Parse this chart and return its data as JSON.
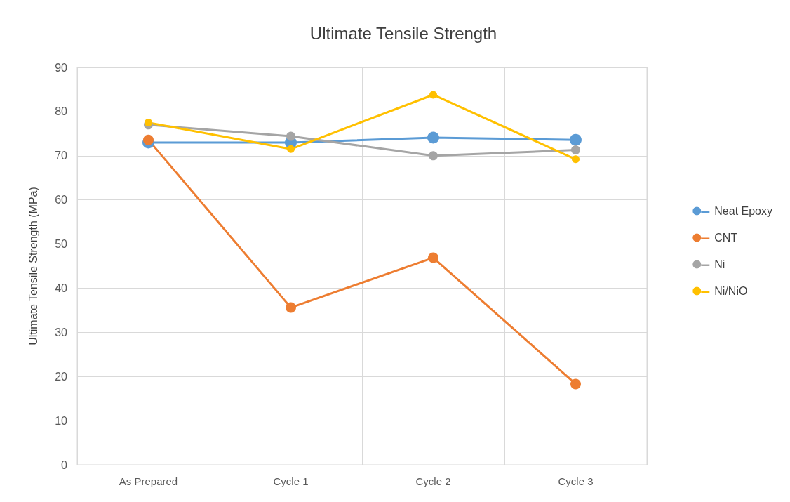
{
  "chart_data": {
    "type": "line",
    "title": "Ultimate Tensile Strength",
    "ylabel": "Ultimate Tensile Strength (MPa)",
    "categories": [
      "As Prepared",
      "Cycle 1",
      "Cycle 2",
      "Cycle 3"
    ],
    "series": [
      {
        "name": "Neat Epoxy",
        "color": "#5b9bd5",
        "values": [
          73.0,
          73.0,
          74.1,
          73.6
        ]
      },
      {
        "name": "CNT",
        "color": "#ed7d31",
        "values": [
          73.6,
          35.6,
          46.9,
          18.3
        ]
      },
      {
        "name": "Ni",
        "color": "#a5a5a5",
        "values": [
          77.0,
          74.4,
          70.0,
          71.3
        ]
      },
      {
        "name": "Ni/NiO",
        "color": "#ffc000",
        "values": [
          77.5,
          71.5,
          83.8,
          69.2
        ]
      }
    ],
    "ylim": [
      0,
      90
    ],
    "yticks": [
      0,
      10,
      20,
      30,
      40,
      50,
      60,
      70,
      80,
      90
    ],
    "grid": true,
    "legend": "right",
    "marker": "circle",
    "line_style": "solid"
  }
}
